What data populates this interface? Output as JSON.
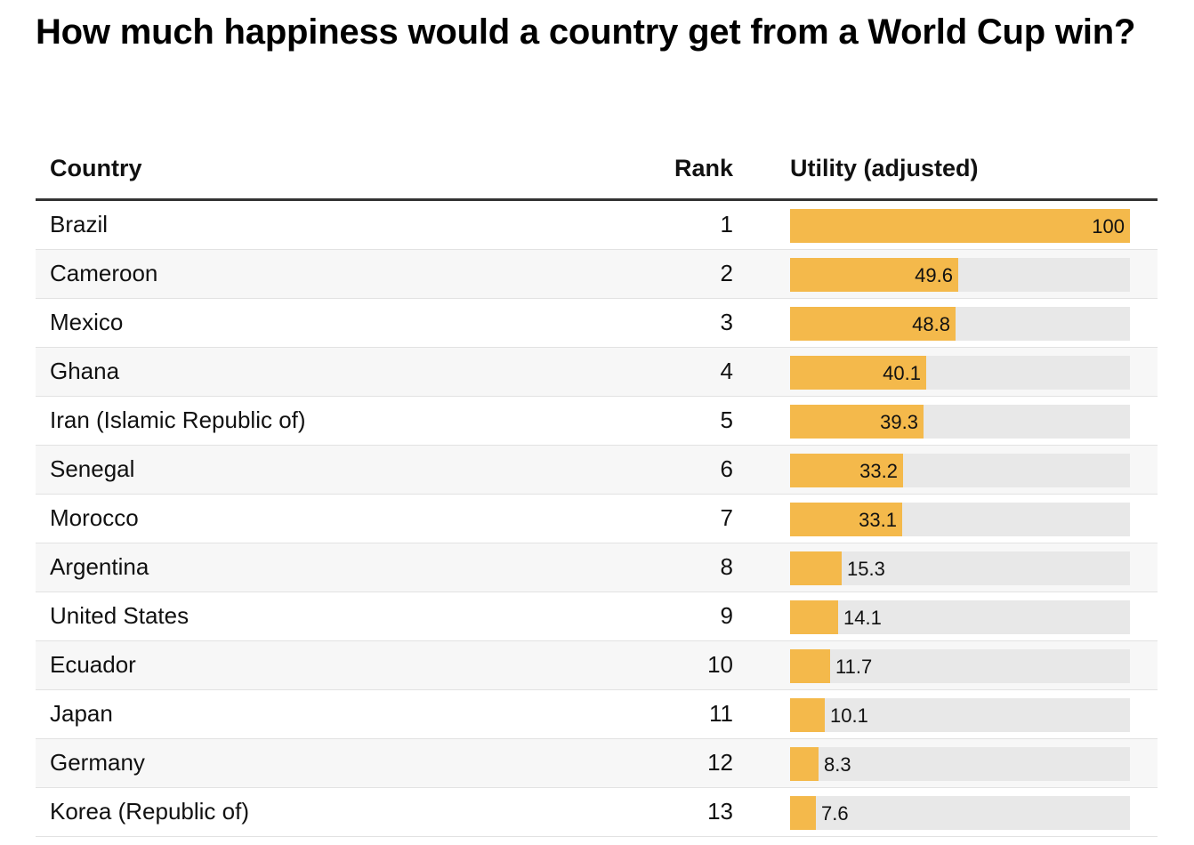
{
  "title": "How much happiness would a country get from a World Cup win?",
  "columns": {
    "country": "Country",
    "rank": "Rank",
    "utility": "Utility (adjusted)"
  },
  "colors": {
    "bar": "#f4b94b",
    "track": "#e8e8e8",
    "header_rule": "#333333"
  },
  "chart_data": {
    "type": "table",
    "title": "How much happiness would a country get from a World Cup win?",
    "columns": [
      "Country",
      "Rank",
      "Utility (adjusted)"
    ],
    "xlim": [
      0,
      100
    ],
    "rows": [
      {
        "country": "Brazil",
        "rank": "1",
        "value": 100,
        "label": "100"
      },
      {
        "country": "Cameroon",
        "rank": "2",
        "value": 49.6,
        "label": "49.6"
      },
      {
        "country": "Mexico",
        "rank": "3",
        "value": 48.8,
        "label": "48.8"
      },
      {
        "country": "Ghana",
        "rank": "4",
        "value": 40.1,
        "label": "40.1"
      },
      {
        "country": "Iran (Islamic Republic of)",
        "rank": "5",
        "value": 39.3,
        "label": "39.3"
      },
      {
        "country": "Senegal",
        "rank": "6",
        "value": 33.2,
        "label": "33.2"
      },
      {
        "country": "Morocco",
        "rank": "7",
        "value": 33.1,
        "label": "33.1"
      },
      {
        "country": "Argentina",
        "rank": "8",
        "value": 15.3,
        "label": "15.3"
      },
      {
        "country": "United States",
        "rank": "9",
        "value": 14.1,
        "label": "14.1"
      },
      {
        "country": "Ecuador",
        "rank": "10",
        "value": 11.7,
        "label": "11.7"
      },
      {
        "country": "Japan",
        "rank": "11",
        "value": 10.1,
        "label": "10.1"
      },
      {
        "country": "Germany",
        "rank": "12",
        "value": 8.3,
        "label": "8.3"
      },
      {
        "country": "Korea (Republic of)",
        "rank": "13",
        "value": 7.6,
        "label": "7.6"
      }
    ]
  }
}
